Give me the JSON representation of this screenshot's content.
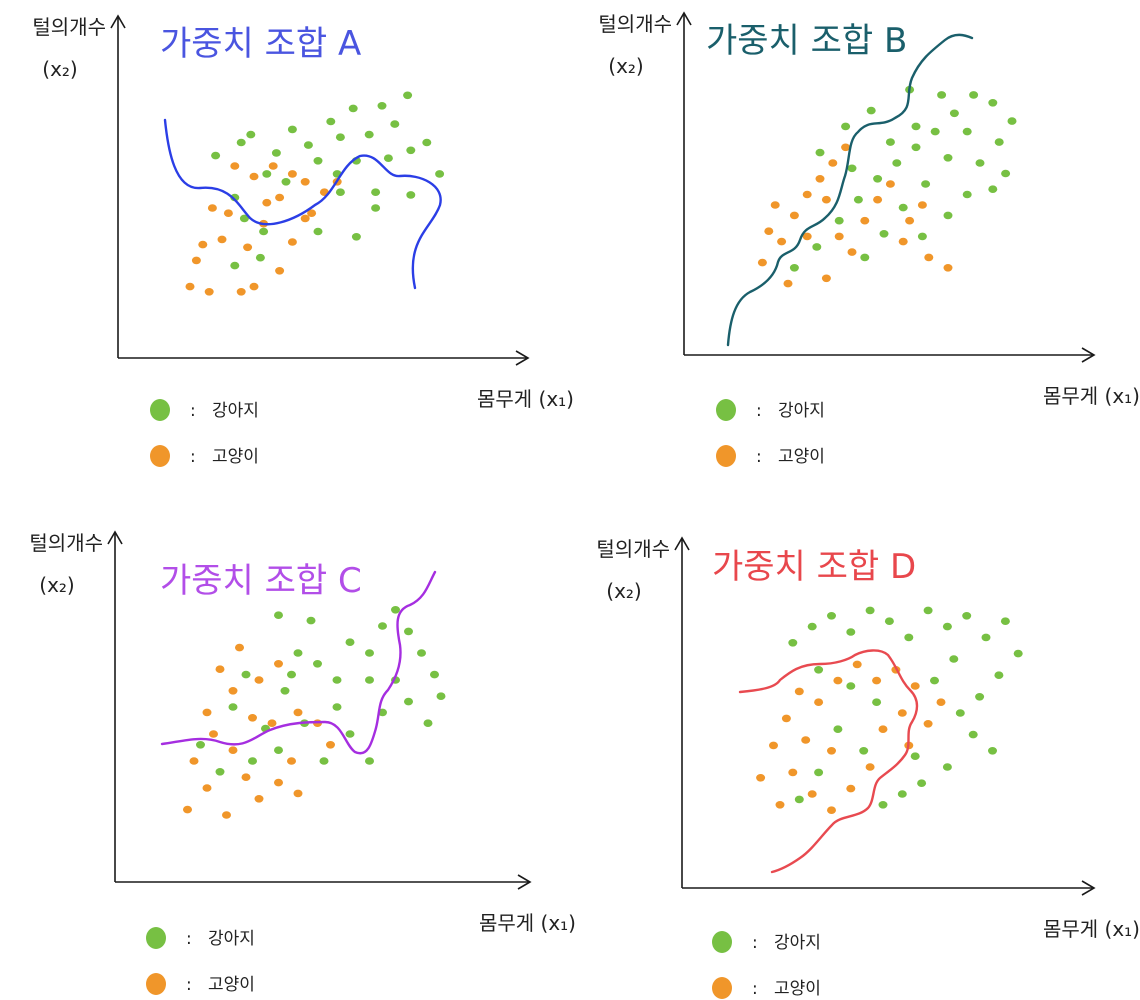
{
  "colors": {
    "dog": "#77c043",
    "cat": "#f0962a",
    "axis": "#1a1a1a"
  },
  "legend": {
    "dog_label": "강아지",
    "cat_label": "고양이",
    "separator": ":"
  },
  "axes": {
    "y_label_line1": "털의개수",
    "y_label_line2": "(x₂)",
    "x_label": "몸무게 (x₁)"
  },
  "chart_data": [
    {
      "type": "scatter",
      "title": "가중치 조합 A",
      "title_color": "#4a55e0",
      "boundary_color": "#2b3ee6",
      "series": [
        {
          "name": "강아지",
          "color": "#77c043",
          "points": [
            [
              0.18,
              0.62
            ],
            [
              0.24,
              0.46
            ],
            [
              0.26,
              0.67
            ],
            [
              0.29,
              0.7
            ],
            [
              0.34,
              0.55
            ],
            [
              0.37,
              0.63
            ],
            [
              0.42,
              0.72
            ],
            [
              0.47,
              0.66
            ],
            [
              0.5,
              0.6
            ],
            [
              0.54,
              0.75
            ],
            [
              0.57,
              0.69
            ],
            [
              0.61,
              0.8
            ],
            [
              0.66,
              0.7
            ],
            [
              0.7,
              0.81
            ],
            [
              0.74,
              0.74
            ],
            [
              0.78,
              0.85
            ],
            [
              0.72,
              0.61
            ],
            [
              0.79,
              0.64
            ],
            [
              0.84,
              0.67
            ],
            [
              0.88,
              0.55
            ],
            [
              0.62,
              0.6
            ],
            [
              0.57,
              0.48
            ],
            [
              0.68,
              0.48
            ],
            [
              0.79,
              0.47
            ],
            [
              0.5,
              0.33
            ],
            [
              0.33,
              0.33
            ],
            [
              0.24,
              0.2
            ],
            [
              0.32,
              0.23
            ],
            [
              0.27,
              0.38
            ],
            [
              0.62,
              0.31
            ],
            [
              0.68,
              0.42
            ],
            [
              0.4,
              0.52
            ],
            [
              0.56,
              0.55
            ]
          ]
        },
        {
          "name": "고양이",
          "color": "#f0962a",
          "points": [
            [
              0.1,
              0.12
            ],
            [
              0.16,
              0.1
            ],
            [
              0.12,
              0.22
            ],
            [
              0.2,
              0.3
            ],
            [
              0.22,
              0.4
            ],
            [
              0.28,
              0.27
            ],
            [
              0.33,
              0.36
            ],
            [
              0.38,
              0.46
            ],
            [
              0.42,
              0.55
            ],
            [
              0.46,
              0.52
            ],
            [
              0.52,
              0.48
            ],
            [
              0.46,
              0.38
            ],
            [
              0.42,
              0.29
            ],
            [
              0.38,
              0.18
            ],
            [
              0.3,
              0.12
            ],
            [
              0.26,
              0.1
            ],
            [
              0.34,
              0.44
            ],
            [
              0.48,
              0.4
            ],
            [
              0.56,
              0.52
            ],
            [
              0.3,
              0.54
            ],
            [
              0.24,
              0.58
            ],
            [
              0.36,
              0.58
            ],
            [
              0.17,
              0.42
            ],
            [
              0.14,
              0.28
            ]
          ]
        }
      ]
    },
    {
      "type": "scatter",
      "title": "가중치 조합 B",
      "title_color": "#1a5f6b",
      "boundary_color": "#1a5f6b",
      "series": [
        {
          "name": "강아지",
          "color": "#77c043",
          "points": [
            [
              0.22,
              0.18
            ],
            [
              0.29,
              0.26
            ],
            [
              0.36,
              0.36
            ],
            [
              0.42,
              0.44
            ],
            [
              0.48,
              0.52
            ],
            [
              0.54,
              0.58
            ],
            [
              0.6,
              0.64
            ],
            [
              0.66,
              0.7
            ],
            [
              0.72,
              0.77
            ],
            [
              0.78,
              0.84
            ],
            [
              0.84,
              0.81
            ],
            [
              0.76,
              0.7
            ],
            [
              0.7,
              0.6
            ],
            [
              0.63,
              0.5
            ],
            [
              0.56,
              0.41
            ],
            [
              0.5,
              0.31
            ],
            [
              0.44,
              0.22
            ],
            [
              0.8,
              0.58
            ],
            [
              0.86,
              0.66
            ],
            [
              0.9,
              0.74
            ],
            [
              0.84,
              0.48
            ],
            [
              0.76,
              0.46
            ],
            [
              0.7,
              0.38
            ],
            [
              0.62,
              0.3
            ],
            [
              0.88,
              0.54
            ],
            [
              0.6,
              0.72
            ],
            [
              0.52,
              0.66
            ],
            [
              0.46,
              0.78
            ],
            [
              0.38,
              0.72
            ],
            [
              0.3,
              0.62
            ],
            [
              0.4,
              0.56
            ],
            [
              0.68,
              0.84
            ],
            [
              0.58,
              0.86
            ]
          ]
        },
        {
          "name": "고양이",
          "color": "#f0962a",
          "points": [
            [
              0.12,
              0.2
            ],
            [
              0.18,
              0.28
            ],
            [
              0.14,
              0.32
            ],
            [
              0.22,
              0.38
            ],
            [
              0.26,
              0.46
            ],
            [
              0.3,
              0.52
            ],
            [
              0.34,
              0.58
            ],
            [
              0.38,
              0.64
            ],
            [
              0.32,
              0.44
            ],
            [
              0.26,
              0.3
            ],
            [
              0.32,
              0.14
            ],
            [
              0.4,
              0.24
            ],
            [
              0.44,
              0.36
            ],
            [
              0.48,
              0.44
            ],
            [
              0.52,
              0.5
            ],
            [
              0.56,
              0.28
            ],
            [
              0.64,
              0.22
            ],
            [
              0.7,
              0.18
            ],
            [
              0.62,
              0.42
            ],
            [
              0.58,
              0.36
            ],
            [
              0.2,
              0.12
            ],
            [
              0.36,
              0.3
            ],
            [
              0.16,
              0.42
            ]
          ]
        }
      ]
    },
    {
      "type": "scatter",
      "title": "가중치 조합 C",
      "title_color": "#b24ee8",
      "boundary_color": "#a52ee0",
      "series": [
        {
          "name": "강아지",
          "color": "#77c043",
          "points": [
            [
              0.14,
              0.36
            ],
            [
              0.2,
              0.26
            ],
            [
              0.24,
              0.5
            ],
            [
              0.28,
              0.62
            ],
            [
              0.34,
              0.42
            ],
            [
              0.4,
              0.56
            ],
            [
              0.44,
              0.7
            ],
            [
              0.5,
              0.66
            ],
            [
              0.56,
              0.6
            ],
            [
              0.6,
              0.74
            ],
            [
              0.66,
              0.7
            ],
            [
              0.7,
              0.8
            ],
            [
              0.74,
              0.86
            ],
            [
              0.78,
              0.78
            ],
            [
              0.82,
              0.7
            ],
            [
              0.86,
              0.62
            ],
            [
              0.74,
              0.6
            ],
            [
              0.7,
              0.48
            ],
            [
              0.78,
              0.52
            ],
            [
              0.84,
              0.44
            ],
            [
              0.88,
              0.54
            ],
            [
              0.6,
              0.4
            ],
            [
              0.66,
              0.3
            ],
            [
              0.52,
              0.3
            ],
            [
              0.46,
              0.44
            ],
            [
              0.38,
              0.34
            ],
            [
              0.3,
              0.3
            ],
            [
              0.56,
              0.5
            ],
            [
              0.48,
              0.82
            ],
            [
              0.38,
              0.84
            ],
            [
              0.42,
              0.62
            ],
            [
              0.66,
              0.6
            ]
          ]
        },
        {
          "name": "고양이",
          "color": "#f0962a",
          "points": [
            [
              0.1,
              0.12
            ],
            [
              0.16,
              0.2
            ],
            [
              0.12,
              0.3
            ],
            [
              0.18,
              0.4
            ],
            [
              0.24,
              0.34
            ],
            [
              0.28,
              0.24
            ],
            [
              0.32,
              0.16
            ],
            [
              0.38,
              0.22
            ],
            [
              0.42,
              0.3
            ],
            [
              0.36,
              0.44
            ],
            [
              0.44,
              0.48
            ],
            [
              0.5,
              0.44
            ],
            [
              0.54,
              0.36
            ],
            [
              0.3,
              0.46
            ],
            [
              0.24,
              0.56
            ],
            [
              0.2,
              0.64
            ],
            [
              0.32,
              0.6
            ],
            [
              0.38,
              0.66
            ],
            [
              0.26,
              0.72
            ],
            [
              0.22,
              0.1
            ],
            [
              0.44,
              0.18
            ],
            [
              0.16,
              0.48
            ]
          ]
        }
      ]
    },
    {
      "type": "scatter",
      "title": "가중치 조합 D",
      "title_color": "#e8474c",
      "boundary_color": "#e84a50",
      "series": [
        {
          "name": "강아지",
          "color": "#77c043",
          "points": [
            [
              0.22,
              0.76
            ],
            [
              0.28,
              0.82
            ],
            [
              0.34,
              0.86
            ],
            [
              0.4,
              0.8
            ],
            [
              0.46,
              0.88
            ],
            [
              0.52,
              0.84
            ],
            [
              0.58,
              0.78
            ],
            [
              0.64,
              0.88
            ],
            [
              0.7,
              0.82
            ],
            [
              0.76,
              0.86
            ],
            [
              0.82,
              0.78
            ],
            [
              0.88,
              0.84
            ],
            [
              0.92,
              0.72
            ],
            [
              0.86,
              0.64
            ],
            [
              0.8,
              0.56
            ],
            [
              0.74,
              0.5
            ],
            [
              0.78,
              0.42
            ],
            [
              0.84,
              0.36
            ],
            [
              0.7,
              0.3
            ],
            [
              0.62,
              0.24
            ],
            [
              0.56,
              0.2
            ],
            [
              0.5,
              0.16
            ],
            [
              0.6,
              0.34
            ],
            [
              0.66,
              0.62
            ],
            [
              0.72,
              0.7
            ],
            [
              0.3,
              0.66
            ],
            [
              0.4,
              0.6
            ],
            [
              0.48,
              0.54
            ],
            [
              0.36,
              0.44
            ],
            [
              0.44,
              0.36
            ],
            [
              0.3,
              0.28
            ],
            [
              0.24,
              0.18
            ]
          ]
        },
        {
          "name": "고양이",
          "color": "#f0962a",
          "points": [
            [
              0.12,
              0.26
            ],
            [
              0.16,
              0.38
            ],
            [
              0.2,
              0.48
            ],
            [
              0.24,
              0.58
            ],
            [
              0.3,
              0.54
            ],
            [
              0.36,
              0.62
            ],
            [
              0.42,
              0.68
            ],
            [
              0.48,
              0.62
            ],
            [
              0.54,
              0.66
            ],
            [
              0.6,
              0.6
            ],
            [
              0.56,
              0.5
            ],
            [
              0.5,
              0.44
            ],
            [
              0.46,
              0.3
            ],
            [
              0.4,
              0.22
            ],
            [
              0.34,
              0.14
            ],
            [
              0.28,
              0.2
            ],
            [
              0.22,
              0.28
            ],
            [
              0.18,
              0.16
            ],
            [
              0.64,
              0.46
            ],
            [
              0.68,
              0.54
            ],
            [
              0.58,
              0.38
            ],
            [
              0.34,
              0.36
            ],
            [
              0.26,
              0.4
            ]
          ]
        }
      ]
    }
  ]
}
